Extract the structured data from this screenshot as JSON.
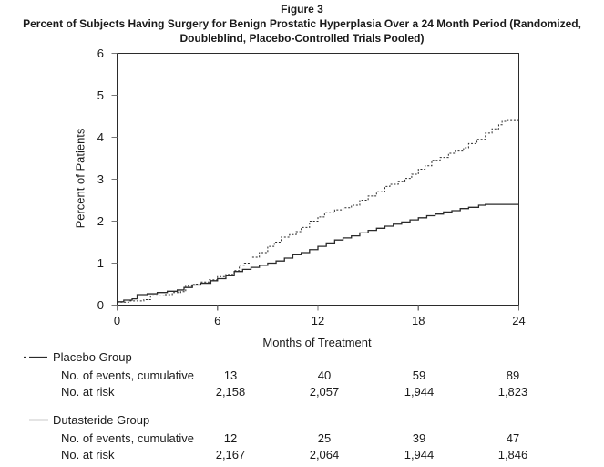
{
  "chart_data": {
    "type": "line",
    "subtype": "kaplan-meier-step",
    "figure_label": "Figure 3",
    "subtitle_lines": [
      "Percent of Subjects Having Surgery for Benign Prostatic Hyperplasia Over a 24 Month Period (Randomized,",
      "Doubleblind, Placebo-Controlled Trials Pooled)"
    ],
    "xlabel": "Months of Treatment",
    "ylabel": "Percent of Patients",
    "xlim": [
      0,
      24
    ],
    "ylim": [
      0,
      6
    ],
    "xticks": [
      0,
      6,
      12,
      18,
      24
    ],
    "yticks": [
      0,
      1,
      2,
      3,
      4,
      5,
      6
    ],
    "grid": false,
    "legend_position": "below-left",
    "axis_color": "#2b2b2b",
    "tick_color": "#777777",
    "series": [
      {
        "name": "Placebo Group",
        "style": "dashed",
        "color": "#2a2a2a",
        "points": [
          [
            0,
            0.07
          ],
          [
            0.7,
            0.1
          ],
          [
            1.2,
            0.1
          ],
          [
            1.6,
            0.13
          ],
          [
            2,
            0.22
          ],
          [
            2.8,
            0.25
          ],
          [
            3.3,
            0.3
          ],
          [
            3.8,
            0.32
          ],
          [
            4.1,
            0.45
          ],
          [
            4.6,
            0.5
          ],
          [
            5,
            0.55
          ],
          [
            5.5,
            0.6
          ],
          [
            6,
            0.68
          ],
          [
            6.5,
            0.73
          ],
          [
            7,
            0.82
          ],
          [
            7.3,
            0.95
          ],
          [
            7.6,
            1.0
          ],
          [
            8,
            1.14
          ],
          [
            8.5,
            1.25
          ],
          [
            9,
            1.4
          ],
          [
            9.4,
            1.5
          ],
          [
            9.8,
            1.62
          ],
          [
            10.3,
            1.68
          ],
          [
            10.7,
            1.75
          ],
          [
            11,
            1.85
          ],
          [
            11.5,
            2.0
          ],
          [
            12,
            2.1
          ],
          [
            12.4,
            2.2
          ],
          [
            13,
            2.27
          ],
          [
            13.5,
            2.32
          ],
          [
            14,
            2.38
          ],
          [
            14.5,
            2.5
          ],
          [
            15,
            2.6
          ],
          [
            15.5,
            2.7
          ],
          [
            16,
            2.83
          ],
          [
            16.3,
            2.88
          ],
          [
            16.8,
            2.95
          ],
          [
            17.2,
            3.02
          ],
          [
            17.6,
            3.12
          ],
          [
            18,
            3.24
          ],
          [
            18.4,
            3.32
          ],
          [
            18.8,
            3.45
          ],
          [
            19.3,
            3.52
          ],
          [
            19.8,
            3.62
          ],
          [
            20.2,
            3.67
          ],
          [
            20.7,
            3.75
          ],
          [
            21,
            3.85
          ],
          [
            21.5,
            3.95
          ],
          [
            22,
            4.1
          ],
          [
            22.4,
            4.2
          ],
          [
            22.8,
            4.3
          ],
          [
            23,
            4.38
          ],
          [
            23.3,
            4.4
          ],
          [
            24,
            4.4
          ]
        ]
      },
      {
        "name": "Dutasteride Group",
        "style": "solid",
        "color": "#2a2a2a",
        "points": [
          [
            0,
            0.08
          ],
          [
            0.4,
            0.12
          ],
          [
            0.9,
            0.15
          ],
          [
            1.2,
            0.25
          ],
          [
            1.8,
            0.27
          ],
          [
            2.4,
            0.3
          ],
          [
            3,
            0.33
          ],
          [
            3.6,
            0.36
          ],
          [
            4,
            0.42
          ],
          [
            4.5,
            0.48
          ],
          [
            5,
            0.52
          ],
          [
            5.6,
            0.58
          ],
          [
            6,
            0.63
          ],
          [
            6.5,
            0.7
          ],
          [
            7,
            0.8
          ],
          [
            7.5,
            0.85
          ],
          [
            8,
            0.9
          ],
          [
            8.5,
            0.95
          ],
          [
            9,
            1.0
          ],
          [
            9.5,
            1.05
          ],
          [
            10,
            1.12
          ],
          [
            10.5,
            1.2
          ],
          [
            11,
            1.25
          ],
          [
            11.5,
            1.32
          ],
          [
            12,
            1.4
          ],
          [
            12.5,
            1.48
          ],
          [
            13,
            1.55
          ],
          [
            13.5,
            1.6
          ],
          [
            14,
            1.65
          ],
          [
            14.5,
            1.72
          ],
          [
            15,
            1.78
          ],
          [
            15.5,
            1.83
          ],
          [
            16,
            1.88
          ],
          [
            16.5,
            1.93
          ],
          [
            17,
            1.98
          ],
          [
            17.5,
            2.03
          ],
          [
            18,
            2.08
          ],
          [
            18.5,
            2.13
          ],
          [
            19,
            2.17
          ],
          [
            19.5,
            2.22
          ],
          [
            20,
            2.25
          ],
          [
            20.5,
            2.3
          ],
          [
            21,
            2.33
          ],
          [
            21.6,
            2.38
          ],
          [
            22,
            2.4
          ],
          [
            24,
            2.4
          ]
        ]
      }
    ],
    "risk_table": {
      "timepoints": [
        6,
        12,
        18,
        24
      ],
      "groups": [
        {
          "name": "Placebo Group",
          "legend_style": "dashed",
          "rows": [
            {
              "label": "No. of events, cumulative",
              "values": [
                "13",
                "40",
                "59",
                "89"
              ]
            },
            {
              "label": "No. at risk",
              "values": [
                "2,158",
                "2,057",
                "1,944",
                "1,823"
              ]
            }
          ]
        },
        {
          "name": "Dutasteride Group",
          "legend_style": "solid",
          "rows": [
            {
              "label": "No. of events, cumulative",
              "values": [
                "12",
                "25",
                "39",
                "47"
              ]
            },
            {
              "label": "No. at risk",
              "values": [
                "2,167",
                "2,064",
                "1,944",
                "1,846"
              ]
            }
          ]
        }
      ]
    }
  }
}
